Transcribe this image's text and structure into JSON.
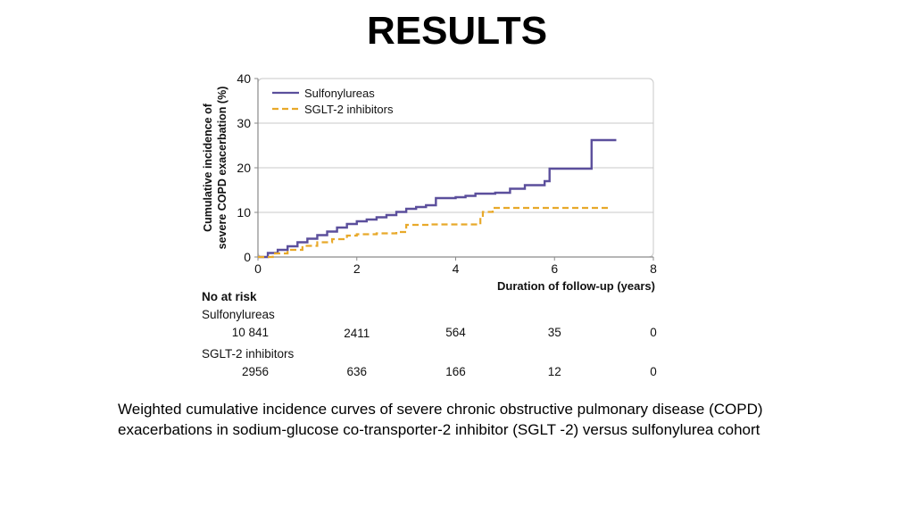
{
  "slide": {
    "title": "RESULTS",
    "caption": "Weighted cumulative incidence curves of severe chronic obstructive pulmonary disease (COPD) exacerbations in sodium-glucose co-transporter-2 inhibitor (SGLT -2) versus sulfonylurea cohort"
  },
  "chart_data": {
    "type": "line",
    "step": true,
    "xlabel": "Duration of follow-up (years)",
    "ylabel_lines": [
      "Cumulative incidence of",
      "severe COPD exacerbation (%)"
    ],
    "xlim": [
      0,
      8
    ],
    "ylim": [
      0,
      40
    ],
    "xticks": [
      0,
      2,
      4,
      6,
      8
    ],
    "yticks": [
      0,
      10,
      20,
      30,
      40
    ],
    "grid": "horizontal",
    "legend_position": "top-left",
    "series": [
      {
        "name": "Sulfonylureas",
        "color": "#5b4f9c",
        "dash": "solid",
        "points": [
          [
            0,
            0
          ],
          [
            0.2,
            0.9
          ],
          [
            0.4,
            1.6
          ],
          [
            0.6,
            2.4
          ],
          [
            0.8,
            3.3
          ],
          [
            1.0,
            4.1
          ],
          [
            1.2,
            4.9
          ],
          [
            1.4,
            5.7
          ],
          [
            1.6,
            6.6
          ],
          [
            1.8,
            7.4
          ],
          [
            2.0,
            8.0
          ],
          [
            2.2,
            8.4
          ],
          [
            2.4,
            8.9
          ],
          [
            2.6,
            9.4
          ],
          [
            2.8,
            10.1
          ],
          [
            3.0,
            10.8
          ],
          [
            3.2,
            11.2
          ],
          [
            3.4,
            11.6
          ],
          [
            3.6,
            13.2
          ],
          [
            4.0,
            13.4
          ],
          [
            4.2,
            13.7
          ],
          [
            4.4,
            14.2
          ],
          [
            4.8,
            14.4
          ],
          [
            5.1,
            15.3
          ],
          [
            5.4,
            16.1
          ],
          [
            5.8,
            17.0
          ],
          [
            5.9,
            19.8
          ],
          [
            6.4,
            19.8
          ],
          [
            6.75,
            26.2
          ],
          [
            7.25,
            26.2
          ]
        ]
      },
      {
        "name": "SGLT-2 inhibitors",
        "color": "#e8a92a",
        "dash": "dashed",
        "points": [
          [
            0,
            0
          ],
          [
            0.3,
            0.8
          ],
          [
            0.6,
            1.6
          ],
          [
            0.9,
            2.5
          ],
          [
            1.2,
            3.3
          ],
          [
            1.5,
            4.0
          ],
          [
            1.8,
            4.8
          ],
          [
            2.0,
            5.1
          ],
          [
            2.4,
            5.3
          ],
          [
            2.8,
            5.6
          ],
          [
            3.0,
            7.2
          ],
          [
            3.5,
            7.3
          ],
          [
            4.5,
            9.0
          ],
          [
            4.55,
            10.1
          ],
          [
            4.75,
            11.0
          ],
          [
            5.5,
            11.0
          ],
          [
            7.15,
            11.0
          ]
        ]
      }
    ],
    "risk_table": {
      "header": "No at risk",
      "rows": [
        {
          "label": "Sulfonylureas",
          "values": [
            "10 841",
            "2411",
            "564",
            "35",
            "0"
          ]
        },
        {
          "label": "SGLT-2 inhibitors",
          "values": [
            "2956",
            "636",
            "166",
            "12",
            "0"
          ]
        }
      ]
    }
  }
}
